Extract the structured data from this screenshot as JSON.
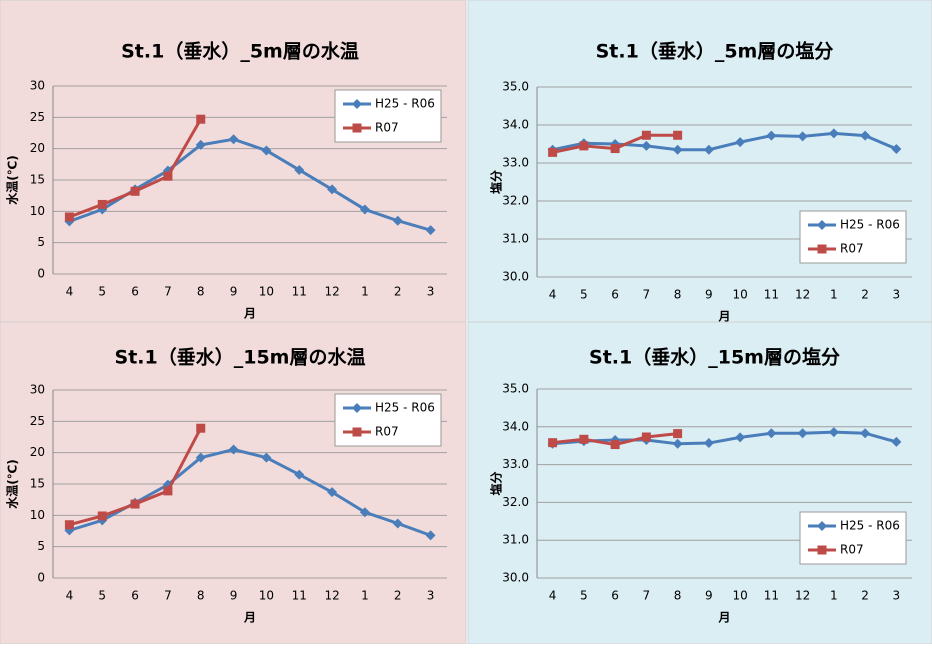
{
  "chart_data": [
    {
      "type": "line",
      "title": "St.1（垂水）_5m層の水温",
      "y_label": "水温(℃)",
      "x_label": "月",
      "categories": [
        "4",
        "5",
        "6",
        "7",
        "8",
        "9",
        "10",
        "11",
        "12",
        "1",
        "2",
        "3"
      ],
      "series": [
        {
          "name": "H25 - R06",
          "color": "#4a7ebb",
          "marker": "diamond",
          "values": [
            8.4,
            10.3,
            13.5,
            16.5,
            20.6,
            21.5,
            19.7,
            16.6,
            13.5,
            10.3,
            8.5,
            7.0
          ]
        },
        {
          "name": "R07",
          "color": "#be4b48",
          "marker": "square",
          "values": [
            9.1,
            11.1,
            13.2,
            15.6,
            24.7,
            null,
            null,
            null,
            null,
            null,
            null,
            null
          ]
        }
      ],
      "ylim": [
        0,
        30
      ],
      "yticks": [
        0,
        5,
        10,
        15,
        20,
        25,
        30
      ],
      "grid": true,
      "legend": "upper right",
      "background": "#f2dcdb"
    },
    {
      "type": "line",
      "title": "St.1（垂水）_5m層の塩分",
      "y_label": "塩分",
      "x_label": "月",
      "categories": [
        "4",
        "5",
        "6",
        "7",
        "8",
        "9",
        "10",
        "11",
        "12",
        "1",
        "2",
        "3"
      ],
      "series": [
        {
          "name": "H25 - R06",
          "color": "#4a7ebb",
          "marker": "diamond",
          "values": [
            33.35,
            33.52,
            33.5,
            33.45,
            33.35,
            33.35,
            33.55,
            33.72,
            33.7,
            33.78,
            33.72,
            33.37
          ]
        },
        {
          "name": "R07",
          "color": "#be4b48",
          "marker": "square",
          "values": [
            33.28,
            33.45,
            33.38,
            33.73,
            33.73,
            null,
            null,
            null,
            null,
            null,
            null,
            null
          ]
        }
      ],
      "ylim": [
        30,
        35
      ],
      "yticks": [
        {
          "value": 30,
          "label": "30.0"
        },
        {
          "value": 31,
          "label": "31.0"
        },
        {
          "value": 32,
          "label": "32.0"
        },
        {
          "value": 33,
          "label": "33.0"
        },
        {
          "value": 34,
          "label": "34.0"
        },
        {
          "value": 35,
          "label": "35.0"
        }
      ],
      "grid": true,
      "legend": "lower right",
      "background": "#dbeef4"
    },
    {
      "type": "line",
      "title": "St.1（垂水）_15m層の水温",
      "y_label": "水温(℃)",
      "x_label": "月",
      "categories": [
        "4",
        "5",
        "6",
        "7",
        "8",
        "9",
        "10",
        "11",
        "12",
        "1",
        "2",
        "3"
      ],
      "series": [
        {
          "name": "H25 - R06",
          "color": "#4a7ebb",
          "marker": "diamond",
          "values": [
            7.6,
            9.2,
            12.0,
            14.9,
            19.2,
            20.5,
            19.2,
            16.5,
            13.7,
            10.5,
            8.7,
            6.8
          ]
        },
        {
          "name": "R07",
          "color": "#be4b48",
          "marker": "square",
          "values": [
            8.5,
            9.9,
            11.8,
            13.9,
            23.9,
            null,
            null,
            null,
            null,
            null,
            null,
            null
          ]
        }
      ],
      "ylim": [
        0,
        30
      ],
      "yticks": [
        0,
        5,
        10,
        15,
        20,
        25,
        30
      ],
      "grid": true,
      "legend": "upper right",
      "background": "#f2dcdb"
    },
    {
      "type": "line",
      "title": "St.1（垂水）_15m層の塩分",
      "y_label": "塩分",
      "x_label": "月",
      "categories": [
        "4",
        "5",
        "6",
        "7",
        "8",
        "9",
        "10",
        "11",
        "12",
        "1",
        "2",
        "3"
      ],
      "series": [
        {
          "name": "H25 - R06",
          "color": "#4a7ebb",
          "marker": "diamond",
          "values": [
            33.55,
            33.62,
            33.65,
            33.65,
            33.55,
            33.57,
            33.72,
            33.83,
            33.83,
            33.86,
            33.83,
            33.6
          ]
        },
        {
          "name": "R07",
          "color": "#be4b48",
          "marker": "square",
          "values": [
            33.58,
            33.67,
            33.53,
            33.73,
            33.82,
            null,
            null,
            null,
            null,
            null,
            null,
            null
          ]
        }
      ],
      "ylim": [
        30,
        35
      ],
      "yticks": [
        {
          "value": 30,
          "label": "30.0"
        },
        {
          "value": 31,
          "label": "31.0"
        },
        {
          "value": 32,
          "label": "32.0"
        },
        {
          "value": 33,
          "label": "33.0"
        },
        {
          "value": 34,
          "label": "34.0"
        },
        {
          "value": 35,
          "label": "35.0"
        }
      ],
      "grid": true,
      "legend": "lower right",
      "background": "#dbeef4"
    }
  ]
}
